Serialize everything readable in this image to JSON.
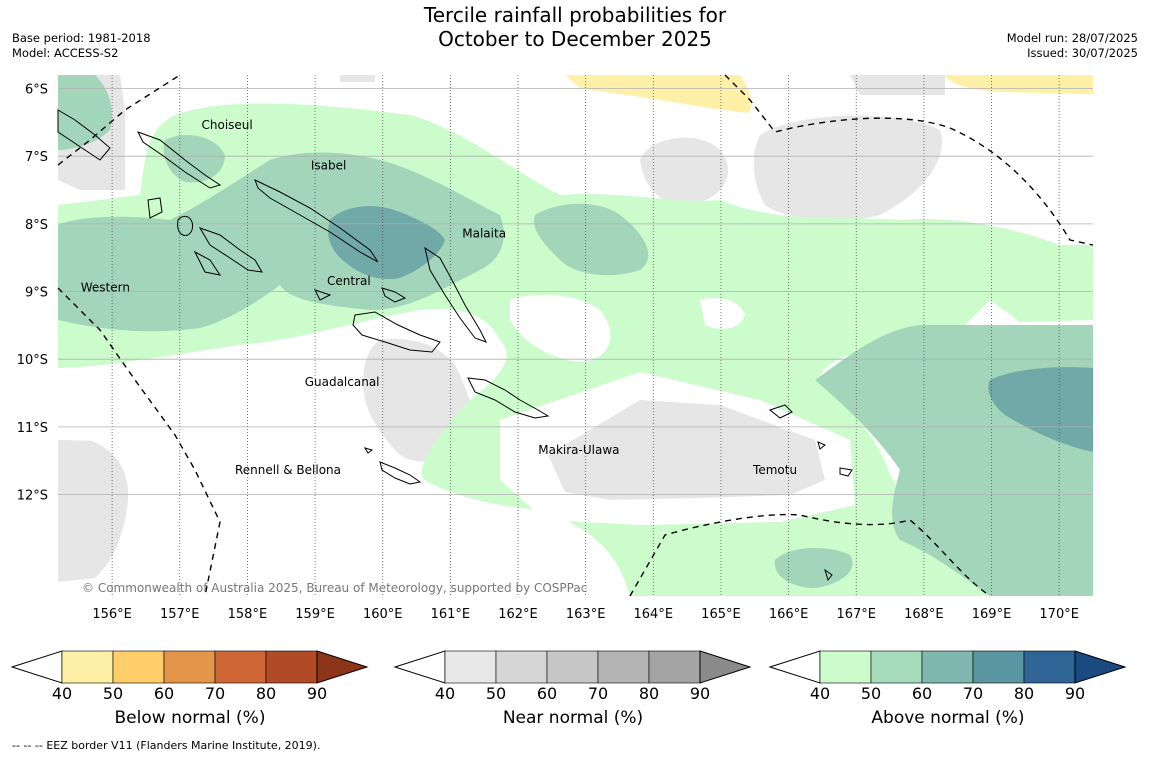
{
  "header": {
    "title_line1": "Tercile rainfall probabilities for",
    "title_line2": "October to December 2025",
    "base_period": "Base period: 1981-2018",
    "model": "Model: ACCESS-S2",
    "model_run": "Model run: 28/07/2025",
    "issued": "Issued: 30/07/2025"
  },
  "map": {
    "lon_range": [
      155.2,
      170.5
    ],
    "lat_range": [
      -13.5,
      -5.8
    ],
    "lon_ticks": [
      "156°E",
      "157°E",
      "158°E",
      "159°E",
      "160°E",
      "161°E",
      "162°E",
      "163°E",
      "164°E",
      "165°E",
      "166°E",
      "167°E",
      "168°E",
      "169°E",
      "170°E"
    ],
    "lat_ticks": [
      "6°S",
      "7°S",
      "8°S",
      "9°S",
      "10°S",
      "11°S",
      "12°S"
    ],
    "place_labels": [
      {
        "name": "Choiseul",
        "lon": 157.7,
        "lat": -6.6
      },
      {
        "name": "Isabel",
        "lon": 159.2,
        "lat": -7.2
      },
      {
        "name": "Malaita",
        "lon": 161.5,
        "lat": -8.2
      },
      {
        "name": "Central",
        "lon": 159.5,
        "lat": -8.9
      },
      {
        "name": "Western",
        "lon": 155.9,
        "lat": -9.0
      },
      {
        "name": "Guadalcanal",
        "lon": 159.4,
        "lat": -10.4
      },
      {
        "name": "Rennell & Bellona",
        "lon": 158.6,
        "lat": -11.7
      },
      {
        "name": "Makira-Ulawa",
        "lon": 162.9,
        "lat": -11.4
      },
      {
        "name": "Temotu",
        "lon": 165.8,
        "lat": -11.7
      }
    ],
    "copyright": "© Commonwealth of Australia 2025, Bureau of Meteorology, supported by COSPPac"
  },
  "colorbars": [
    {
      "label": "Below normal (%)",
      "colors": [
        "#fff0a8",
        "#ffce6b",
        "#e3954a",
        "#cf6636",
        "#b04a27",
        "#8d3519"
      ],
      "ticks": [
        "40",
        "50",
        "60",
        "70",
        "80",
        "90"
      ]
    },
    {
      "label": "Near normal (%)",
      "colors": [
        "#e8e8e8",
        "#d6d6d6",
        "#c6c6c6",
        "#b4b4b4",
        "#a4a4a4",
        "#8a8a8a"
      ],
      "ticks": [
        "40",
        "50",
        "60",
        "70",
        "80",
        "90"
      ]
    },
    {
      "label": "Above normal (%)",
      "colors": [
        "#ccfccc",
        "#a6dcbc",
        "#7fb8ae",
        "#5a96a2",
        "#2f6496",
        "#1a4a80"
      ],
      "ticks": [
        "40",
        "50",
        "60",
        "70",
        "80",
        "90"
      ]
    }
  ],
  "footer": {
    "legend_symbol": "--  --  --",
    "legend_text": "EEZ border V11 (Flanders Marine Institute, 2019)."
  }
}
